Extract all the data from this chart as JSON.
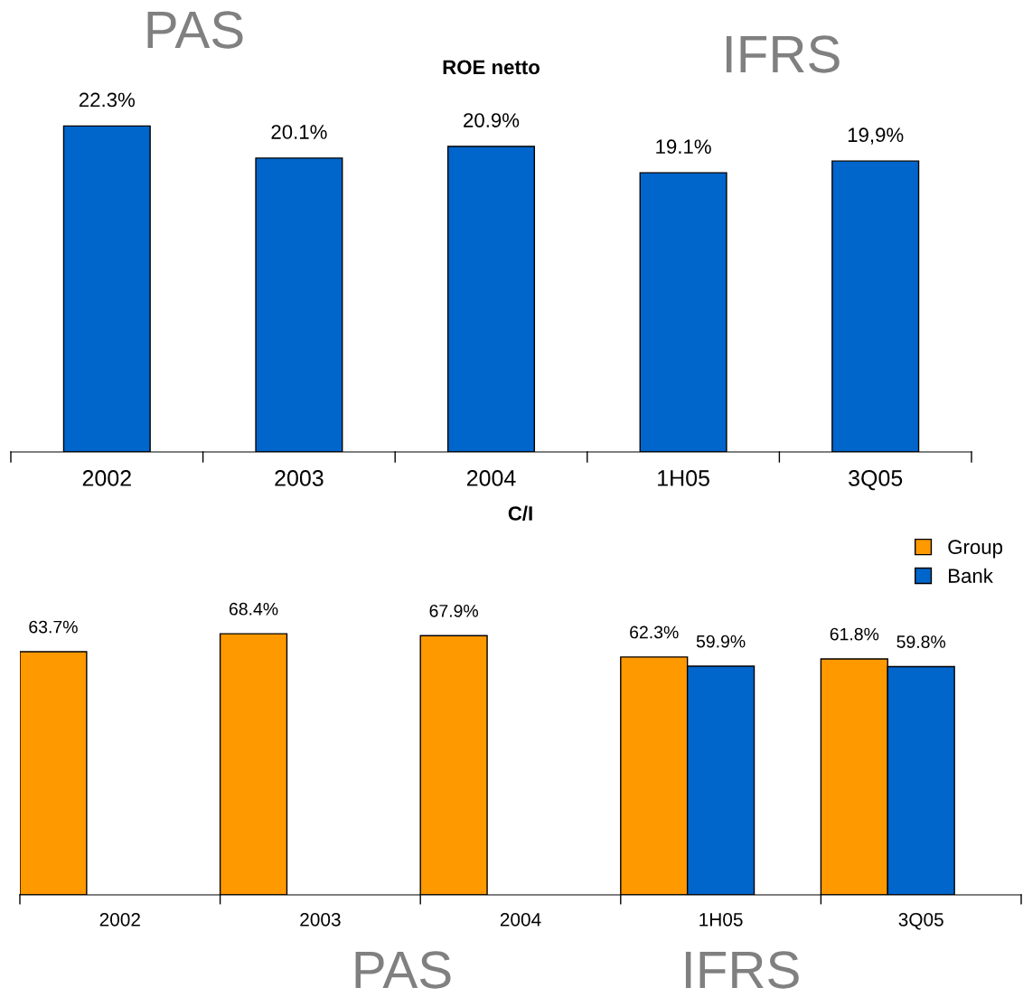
{
  "chart_data": [
    {
      "type": "bar",
      "title": "ROE netto",
      "categories": [
        "2002",
        "2003",
        "2004",
        "1H05",
        "3Q05"
      ],
      "values": [
        22.3,
        20.1,
        20.9,
        19.1,
        19.9
      ],
      "color": "#0066cc",
      "value_labels": [
        "22.3%",
        "20.1%",
        "20.9%",
        "19.1%",
        "19,9%"
      ],
      "tick_labels": "x",
      "grid": false,
      "legend": false,
      "annotations": [
        "PAS",
        "IFRS"
      ]
    },
    {
      "type": "bar",
      "title": "C/I",
      "categories": [
        "2002",
        "2003",
        "2004",
        "1H05",
        "3Q05"
      ],
      "series": [
        {
          "name": "Group",
          "color": "#ff9900",
          "values": [
            63.7,
            68.4,
            67.9,
            62.3,
            61.8
          ],
          "value_labels": [
            "63.7%",
            "68.4%",
            "67.9%",
            "62.3%",
            "61.8%"
          ]
        },
        {
          "name": "Bank",
          "color": "#0066cc",
          "values": [
            null,
            null,
            null,
            59.9,
            59.8
          ],
          "value_labels": [
            null,
            null,
            null,
            "59.9%",
            "59.8%"
          ]
        }
      ],
      "tick_labels": "x",
      "grid": false,
      "legend": "top right",
      "annotations": [
        "PAS",
        "IFRS"
      ]
    }
  ]
}
